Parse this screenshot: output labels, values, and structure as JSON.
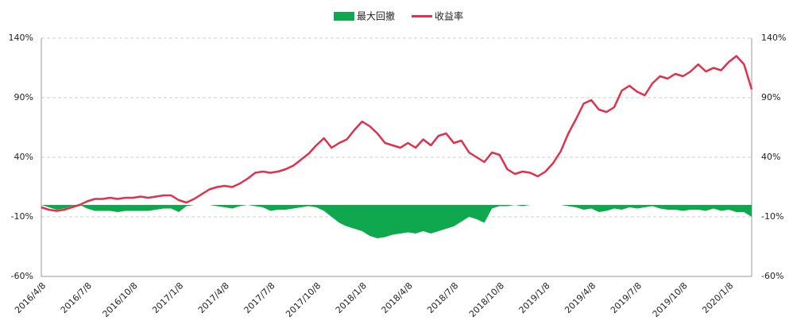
{
  "chart_data": {
    "type": "area-line",
    "categories": [
      "2016/4/8",
      null,
      null,
      null,
      null,
      null,
      "2016/7/8",
      null,
      null,
      null,
      null,
      null,
      "2016/10/8",
      null,
      null,
      null,
      null,
      null,
      "2017/1/8",
      null,
      null,
      null,
      null,
      null,
      "2017/4/8",
      null,
      null,
      null,
      null,
      null,
      "2017/7/8",
      null,
      null,
      null,
      null,
      null,
      "2017/10/8",
      null,
      null,
      null,
      null,
      null,
      "2018/1/8",
      null,
      null,
      null,
      null,
      null,
      "2018/4/8",
      null,
      null,
      null,
      null,
      null,
      "2018/7/8",
      null,
      null,
      null,
      null,
      null,
      "2018/10/8",
      null,
      null,
      null,
      null,
      null,
      "2019/1/8",
      null,
      null,
      null,
      null,
      null,
      "2019/4/8",
      null,
      null,
      null,
      null,
      null,
      "2019/7/8",
      null,
      null,
      null,
      null,
      null,
      "2019/10/8",
      null,
      null,
      null,
      null,
      null,
      "2020/1/8",
      null,
      null,
      null
    ],
    "series": [
      {
        "name": "最大回撤",
        "type": "area",
        "color": "#10a84e",
        "values": [
          0,
          -2,
          -4,
          -3,
          -1,
          0,
          -3,
          -5,
          -5,
          -5,
          -6,
          -5,
          -5,
          -5,
          -5,
          -4,
          -3,
          -3,
          -6,
          -1,
          0,
          0,
          0,
          -1,
          -2,
          -3,
          -1,
          0,
          -1,
          -2,
          -5,
          -4,
          -4,
          -3,
          -2,
          -1,
          -2,
          -5,
          -10,
          -15,
          -18,
          -20,
          -22,
          -26,
          -28,
          -27,
          -25,
          -24,
          -23,
          -24,
          -22,
          -24,
          -22,
          -20,
          -18,
          -14,
          -10,
          -12,
          -15,
          -3,
          -1,
          -1,
          0,
          -1,
          0,
          0,
          0,
          0,
          0,
          -1,
          -2,
          -4,
          -3,
          -6,
          -5,
          -3,
          -4,
          -2,
          -3,
          -2,
          -1,
          -3,
          -4,
          -4,
          -5,
          -4,
          -4,
          -5,
          -3,
          -5,
          -4,
          -6,
          -6,
          -10
        ]
      },
      {
        "name": "收益率",
        "type": "line",
        "color": "#e0314b",
        "axis": "y2",
        "values": [
          -2,
          -4,
          -5,
          -4,
          -2,
          0,
          3,
          5,
          5,
          6,
          5,
          6,
          6,
          7,
          6,
          7,
          8,
          8,
          4,
          2,
          5,
          9,
          13,
          15,
          16,
          15,
          18,
          22,
          27,
          28,
          27,
          28,
          30,
          33,
          38,
          43,
          50,
          56,
          48,
          52,
          55,
          63,
          70,
          66,
          60,
          52,
          50,
          48,
          52,
          48,
          55,
          50,
          58,
          60,
          52,
          54,
          44,
          40,
          36,
          44,
          42,
          30,
          26,
          28,
          27,
          24,
          28,
          35,
          45,
          60,
          72,
          85,
          88,
          80,
          78,
          82,
          96,
          100,
          95,
          92,
          102,
          108,
          106,
          110,
          108,
          112,
          118,
          112,
          115,
          113,
          120,
          125,
          118,
          97
        ]
      }
    ],
    "ylim": [
      -60,
      140
    ],
    "yticks": [
      {
        "value": -60,
        "label": "-60%"
      },
      {
        "value": -10,
        "label": "-10%"
      },
      {
        "value": 40,
        "label": "40%"
      },
      {
        "value": 90,
        "label": "90%"
      },
      {
        "value": 140,
        "label": "140%"
      }
    ],
    "y2lim": [
      -60,
      140
    ],
    "y2ticks": [
      {
        "value": -60,
        "label": "-60%"
      },
      {
        "value": -10,
        "label": "-10%"
      },
      {
        "value": 40,
        "label": "40%"
      },
      {
        "value": 90,
        "label": "90%"
      },
      {
        "value": 140,
        "label": "140%"
      }
    ],
    "grid": true,
    "legend": "top"
  }
}
